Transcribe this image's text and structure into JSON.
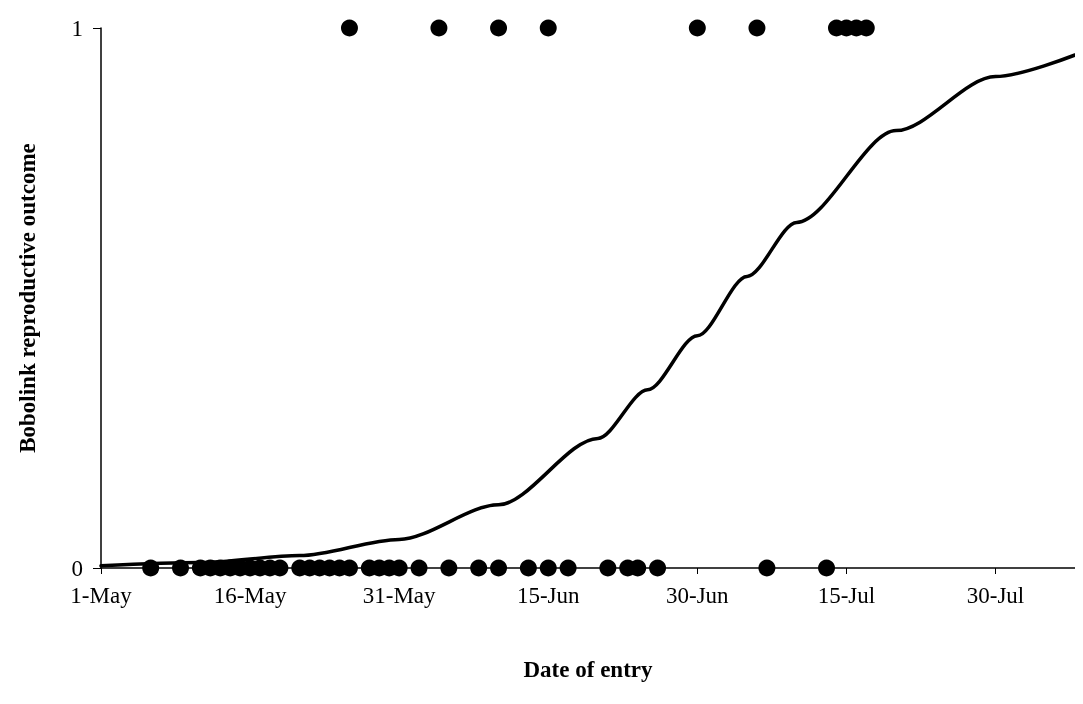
{
  "chart_data": {
    "type": "scatter",
    "xlabel": "Date of entry",
    "ylabel": "Bobolink reproductive outcome",
    "xlim": [
      "--05-01",
      "--08-07"
    ],
    "ylim": [
      0,
      1
    ],
    "xticks": [
      {
        "value": "--05-01",
        "label": "1-May"
      },
      {
        "value": "--05-16",
        "label": "16-May"
      },
      {
        "value": "--05-31",
        "label": "31-May"
      },
      {
        "value": "--06-15",
        "label": "15-Jun"
      },
      {
        "value": "--06-30",
        "label": "30-Jun"
      },
      {
        "value": "--07-15",
        "label": "15-Jul"
      },
      {
        "value": "--07-30",
        "label": "30-Jul"
      }
    ],
    "yticks": [
      0,
      1
    ],
    "grid": false,
    "series": [
      {
        "color": "#000000",
        "marker": "circle",
        "x": [
          "--05-06",
          "--05-09",
          "--05-11",
          "--05-12",
          "--05-13",
          "--05-14",
          "--05-15",
          "--05-16",
          "--05-17",
          "--05-18",
          "--05-19",
          "--05-21",
          "--05-22",
          "--05-23",
          "--05-24",
          "--05-25",
          "--05-26",
          "--05-28",
          "--05-29",
          "--05-30",
          "--05-31",
          "--06-02",
          "--06-05",
          "--06-08",
          "--06-10",
          "--06-13",
          "--06-15",
          "--06-17",
          "--06-21",
          "--06-23",
          "--06-24",
          "--06-26",
          "--07-07",
          "--07-13",
          "--05-26",
          "--06-04",
          "--06-10",
          "--06-15",
          "--06-30",
          "--07-06",
          "--07-14",
          "--07-15",
          "--07-16",
          "--07-17"
        ],
        "values": [
          0,
          0,
          0,
          0,
          0,
          0,
          0,
          0,
          0,
          0,
          0,
          0,
          0,
          0,
          0,
          0,
          0,
          0,
          0,
          0,
          0,
          0,
          0,
          0,
          0,
          0,
          0,
          0,
          0,
          0,
          0,
          0,
          0,
          0,
          1,
          1,
          1,
          1,
          1,
          1,
          1,
          1,
          1,
          1
        ]
      },
      {
        "type": "line",
        "color": "#000000",
        "marker": "none",
        "line_style": "solid",
        "x": [
          "--05-01",
          "--05-11",
          "--05-21",
          "--05-31",
          "--06-10",
          "--06-20",
          "--06-25",
          "--06-30",
          "--07-05",
          "--07-10",
          "--07-20",
          "--07-30",
          "--08-07"
        ],
        "values": [
          0.004,
          0.01,
          0.023,
          0.053,
          0.117,
          0.24,
          0.33,
          0.43,
          0.54,
          0.64,
          0.81,
          0.91,
          0.95
        ]
      }
    ]
  }
}
